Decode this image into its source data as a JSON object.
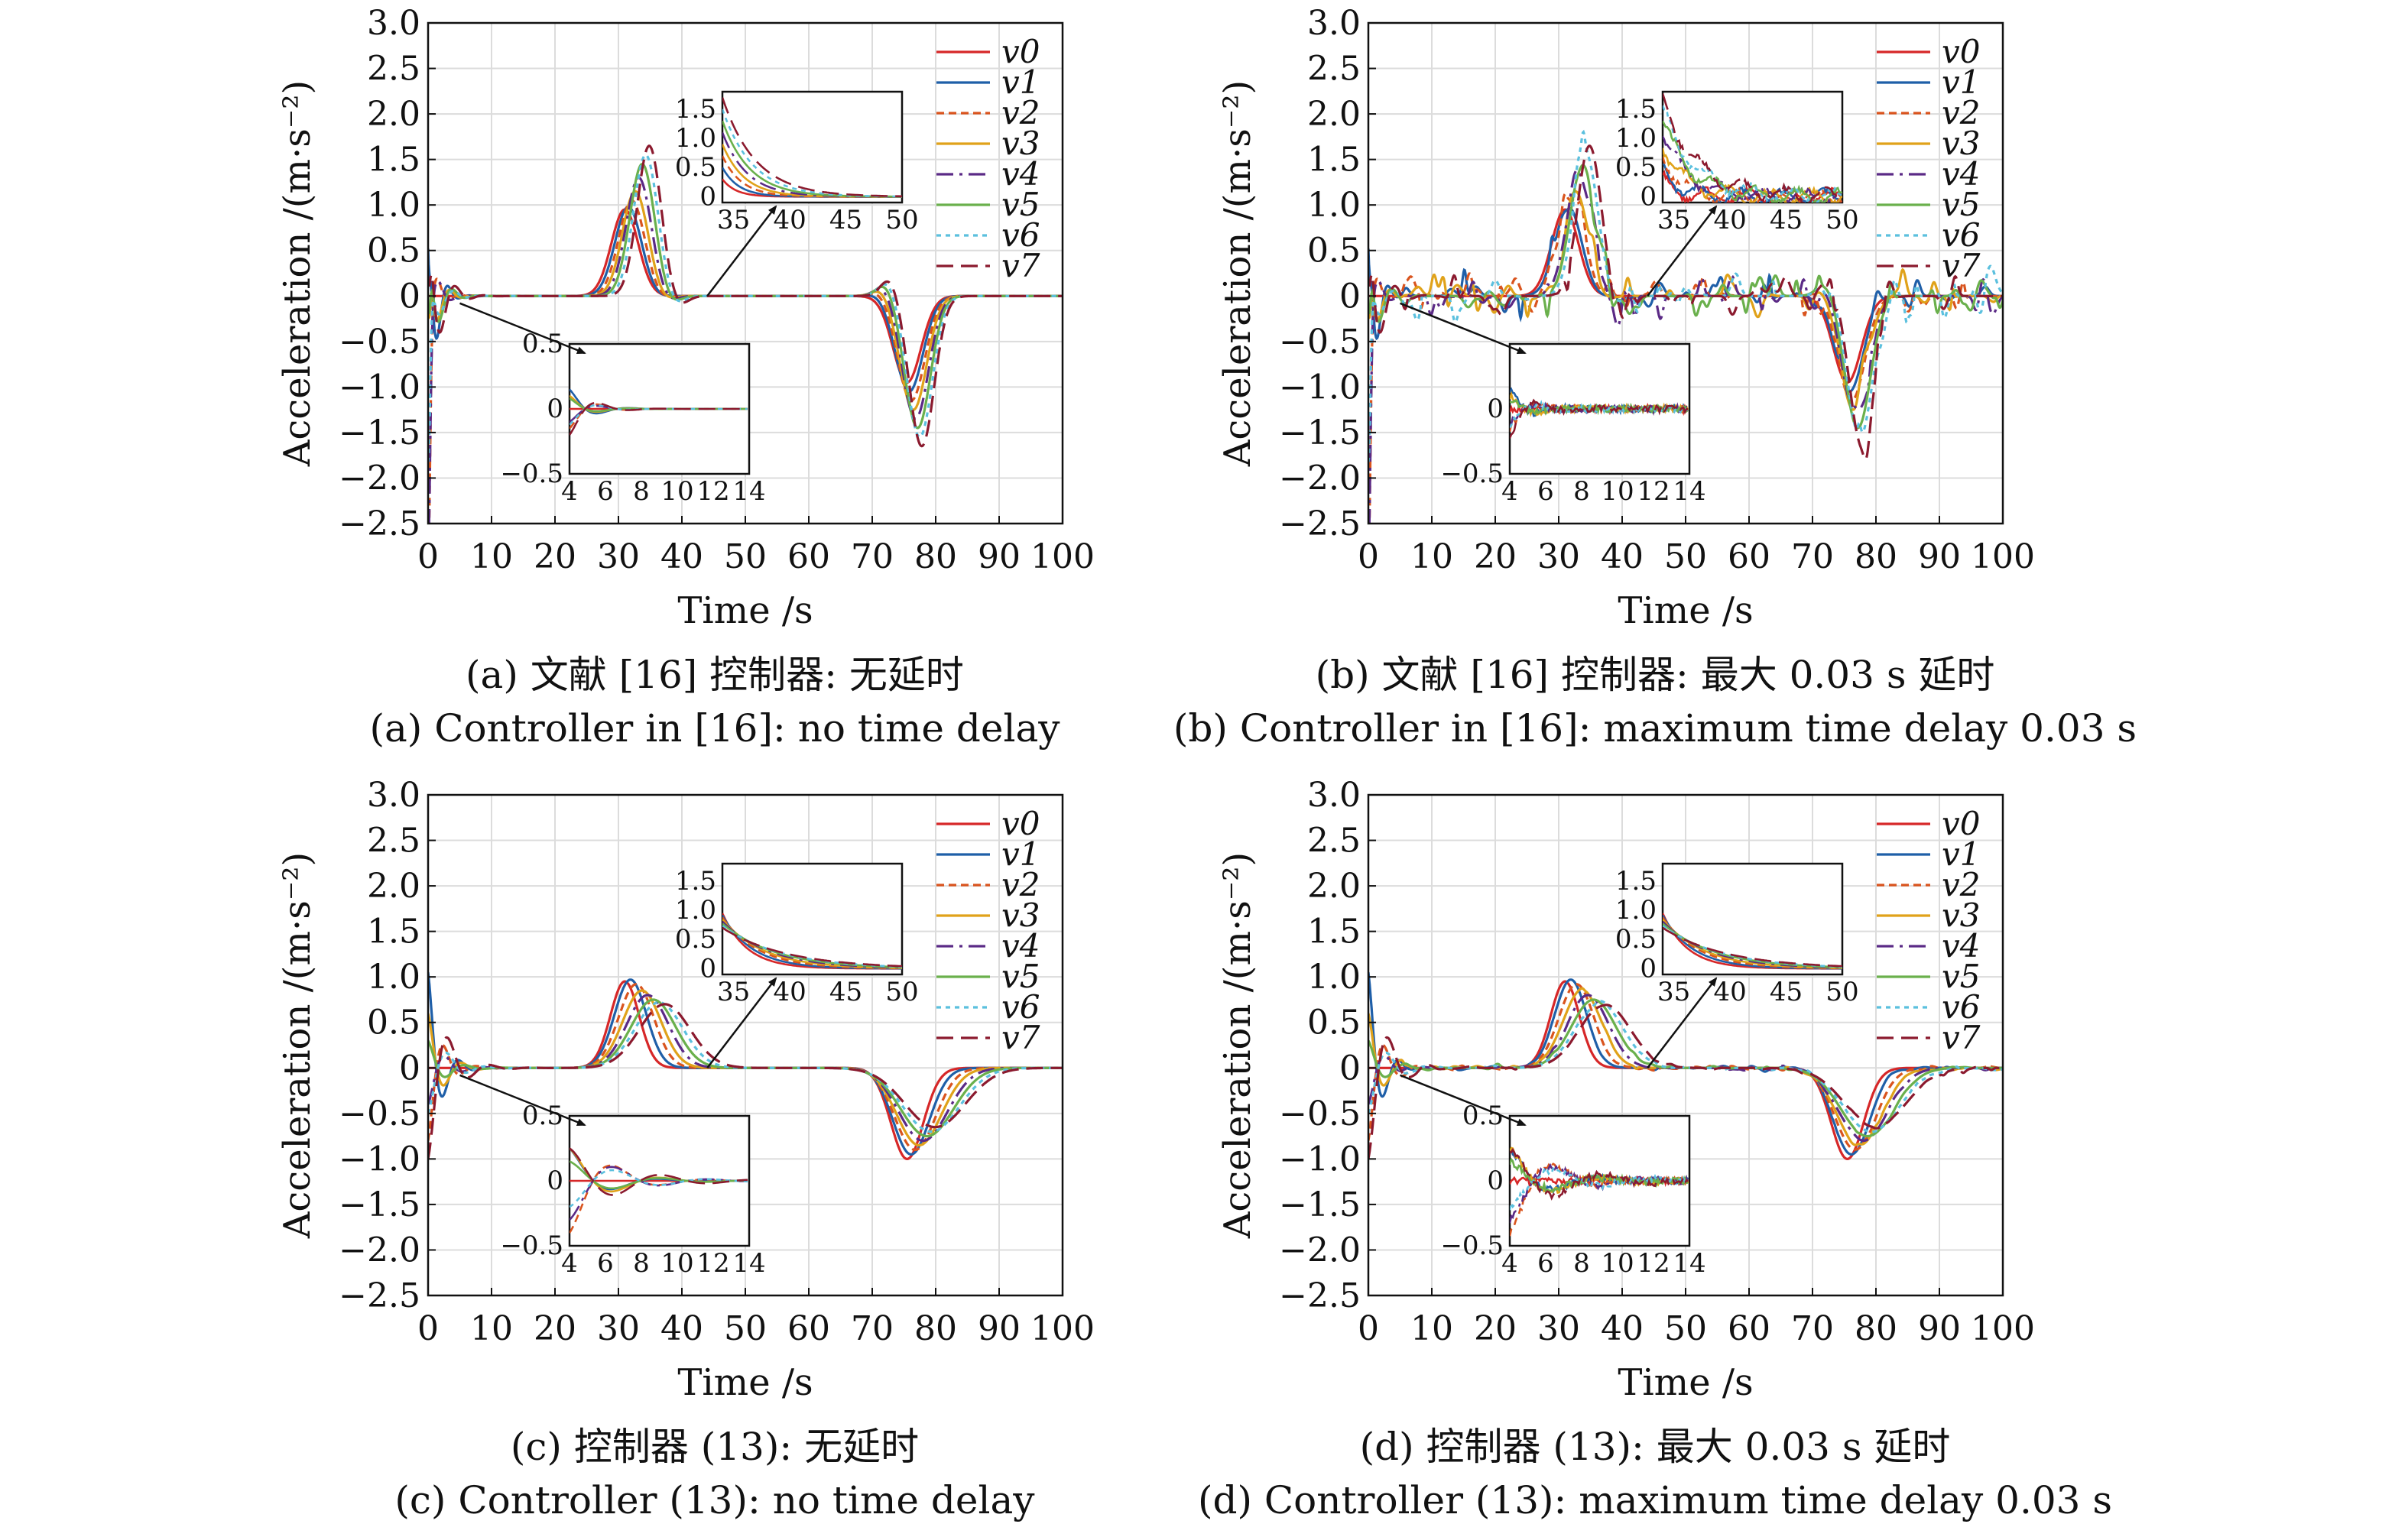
{
  "figure": {
    "colors": [
      "#d62728",
      "#1f5fa8",
      "#d9541e",
      "#e0a21a",
      "#5b2a86",
      "#6ab04c",
      "#5bc0de",
      "#8b1a2e"
    ],
    "dashes": [
      "none",
      "none",
      "10,6",
      "none",
      "22,8,4,8",
      "none",
      "6,6",
      "22,10"
    ],
    "captions_note": "four panels"
  },
  "chart_data": [
    {
      "type": "line",
      "id": "a",
      "caption_cn": "(a) 文献 [16] 控制器: 无延时",
      "caption_en": "(a) Controller in [16]: no time delay",
      "xlabel": "Time /s",
      "ylabel": "Acceleration /(m·s⁻²)",
      "xlim": [
        0,
        100
      ],
      "ylim": [
        -2.5,
        3.0
      ],
      "xticks": [
        "0",
        "10",
        "20",
        "30",
        "40",
        "50",
        "60",
        "70",
        "80",
        "90",
        "100"
      ],
      "yticks": [
        "3.0",
        "2.5",
        "2.0",
        "1.5",
        "1.0",
        "0.5",
        "0",
        "−0.5",
        "−1.0",
        "−1.5",
        "−2.0",
        "−2.5"
      ],
      "legend": [
        "v0",
        "v1",
        "v2",
        "v3",
        "v4",
        "v5",
        "v6",
        "v7"
      ],
      "legend_position": "top-right",
      "grid": true,
      "delay": false,
      "pulse_amplitudes": [
        0.95,
        0.98,
        1.05,
        1.15,
        1.3,
        1.45,
        1.55,
        1.65
      ],
      "inset_high": {
        "xticks": [
          "35",
          "40",
          "45",
          "50"
        ],
        "yticks": [
          "1.5",
          "1.0",
          "0.5",
          "0"
        ],
        "xlim": [
          34,
          50
        ],
        "ylim": [
          -0.1,
          1.8
        ]
      },
      "inset_low": {
        "xticks": [
          "4",
          "6",
          "8",
          "10",
          "12",
          "14"
        ],
        "yticks": [
          "0.5",
          "0",
          "−0.5"
        ],
        "xlim": [
          4,
          14
        ],
        "ylim": [
          -0.5,
          0.5
        ]
      }
    },
    {
      "type": "line",
      "id": "b",
      "caption_cn": "(b) 文献 [16] 控制器: 最大 0.03 s 延时",
      "caption_en": "(b) Controller in [16]: maximum time delay 0.03 s",
      "xlabel": "Time /s",
      "ylabel": "Acceleration /(m·s⁻²)",
      "xlim": [
        0,
        100
      ],
      "ylim": [
        -2.5,
        3.0
      ],
      "xticks": [
        "0",
        "10",
        "20",
        "30",
        "40",
        "50",
        "60",
        "70",
        "80",
        "90",
        "100"
      ],
      "yticks": [
        "3.0",
        "2.5",
        "2.0",
        "1.5",
        "1.0",
        "0.5",
        "0",
        "−0.5",
        "−1.0",
        "−1.5",
        "−2.0",
        "−2.5"
      ],
      "legend": [
        "v0",
        "v1",
        "v2",
        "v3",
        "v4",
        "v5",
        "v6",
        "v7"
      ],
      "legend_position": "top-right",
      "grid": true,
      "delay": true,
      "pulse_amplitudes": [
        0.95,
        0.98,
        1.05,
        1.15,
        1.3,
        1.45,
        1.55,
        1.65
      ],
      "inset_high": {
        "xticks": [
          "35",
          "40",
          "45",
          "50"
        ],
        "yticks": [
          "1.5",
          "1.0",
          "0.5",
          "0"
        ],
        "xlim": [
          34,
          50
        ],
        "ylim": [
          -0.1,
          1.8
        ]
      },
      "inset_low": {
        "xticks": [
          "4",
          "6",
          "8",
          "10",
          "12",
          "14"
        ],
        "yticks": [
          "0",
          "−0.5"
        ],
        "xlim": [
          4,
          14
        ],
        "ylim": [
          -0.5,
          0.5
        ]
      }
    },
    {
      "type": "line",
      "id": "c",
      "caption_cn": "(c) 控制器 (13): 无延时",
      "caption_en": "(c) Controller (13): no time delay",
      "xlabel": "Time /s",
      "ylabel": "Acceleration /(m·s⁻²)",
      "xlim": [
        0,
        100
      ],
      "ylim": [
        -2.5,
        3.0
      ],
      "xticks": [
        "0",
        "10",
        "20",
        "30",
        "40",
        "50",
        "60",
        "70",
        "80",
        "90",
        "100"
      ],
      "yticks": [
        "3.0",
        "2.5",
        "2.0",
        "1.5",
        "1.0",
        "0.5",
        "0",
        "−0.5",
        "−1.0",
        "−1.5",
        "−2.0",
        "−2.5"
      ],
      "legend": [
        "v0",
        "v1",
        "v2",
        "v3",
        "v4",
        "v5",
        "v6",
        "v7"
      ],
      "legend_position": "top-right",
      "grid": true,
      "delay": false,
      "pulse_amplitudes": [
        0.95,
        0.97,
        0.92,
        0.85,
        0.8,
        0.75,
        0.72,
        0.7
      ],
      "inset_high": {
        "xticks": [
          "35",
          "40",
          "45",
          "50"
        ],
        "yticks": [
          "1.5",
          "1.0",
          "0.5",
          "0"
        ],
        "xlim": [
          34,
          50
        ],
        "ylim": [
          -0.1,
          1.8
        ]
      },
      "inset_low": {
        "xticks": [
          "4",
          "6",
          "8",
          "10",
          "12",
          "14"
        ],
        "yticks": [
          "0.5",
          "0",
          "−0.5"
        ],
        "xlim": [
          4,
          14
        ],
        "ylim": [
          -0.5,
          0.5
        ]
      }
    },
    {
      "type": "line",
      "id": "d",
      "caption_cn": "(d) 控制器 (13): 最大 0.03 s 延时",
      "caption_en": "(d) Controller (13): maximum time delay 0.03 s",
      "xlabel": "Time /s",
      "ylabel": "Acceleration /(m·s⁻²)",
      "xlim": [
        0,
        100
      ],
      "ylim": [
        -2.5,
        3.0
      ],
      "xticks": [
        "0",
        "10",
        "20",
        "30",
        "40",
        "50",
        "60",
        "70",
        "80",
        "90",
        "100"
      ],
      "yticks": [
        "3.0",
        "2.5",
        "2.0",
        "1.5",
        "1.0",
        "0.5",
        "0",
        "−0.5",
        "−1.0",
        "−1.5",
        "−2.0",
        "−2.5"
      ],
      "legend": [
        "v0",
        "v1",
        "v2",
        "v3",
        "v4",
        "v5",
        "v6",
        "v7"
      ],
      "legend_position": "top-right",
      "grid": true,
      "delay": true,
      "pulse_amplitudes": [
        0.95,
        0.97,
        0.92,
        0.85,
        0.8,
        0.75,
        0.72,
        0.7
      ],
      "inset_high": {
        "xticks": [
          "35",
          "40",
          "45",
          "50"
        ],
        "yticks": [
          "1.5",
          "1.0",
          "0.5",
          "0"
        ],
        "xlim": [
          34,
          50
        ],
        "ylim": [
          -0.1,
          1.8
        ]
      },
      "inset_low": {
        "xticks": [
          "4",
          "6",
          "8",
          "10",
          "12",
          "14"
        ],
        "yticks": [
          "0.5",
          "0",
          "−0.5"
        ],
        "xlim": [
          4,
          14
        ],
        "ylim": [
          -0.5,
          0.5
        ]
      }
    }
  ]
}
